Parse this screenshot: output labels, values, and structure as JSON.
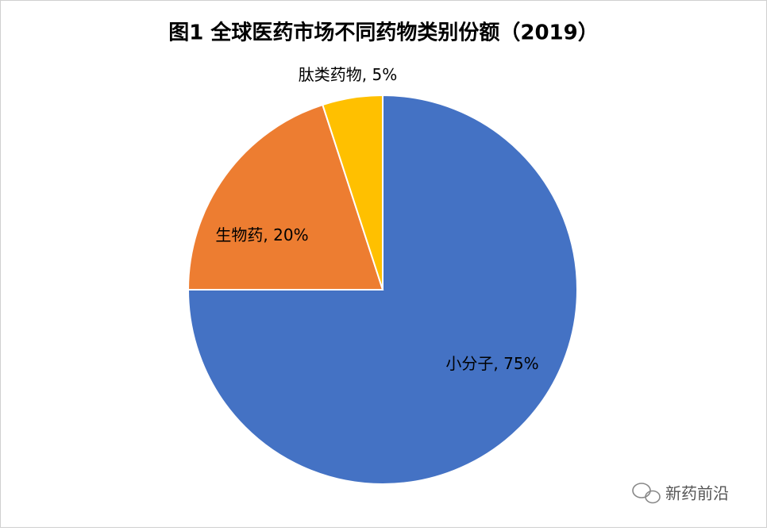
{
  "chart_data": {
    "type": "pie",
    "title": "图1 全球医药市场不同药物类别份额（2019）",
    "categories": [
      "小分子",
      "生物药",
      "肽类药物"
    ],
    "values": [
      75,
      20,
      5
    ],
    "value_labels": [
      "75%",
      "20%",
      "5%"
    ],
    "label_separator": ", ",
    "colors": [
      "#4472c4",
      "#ed7d31",
      "#ffc000"
    ]
  },
  "watermark": "新药前沿"
}
